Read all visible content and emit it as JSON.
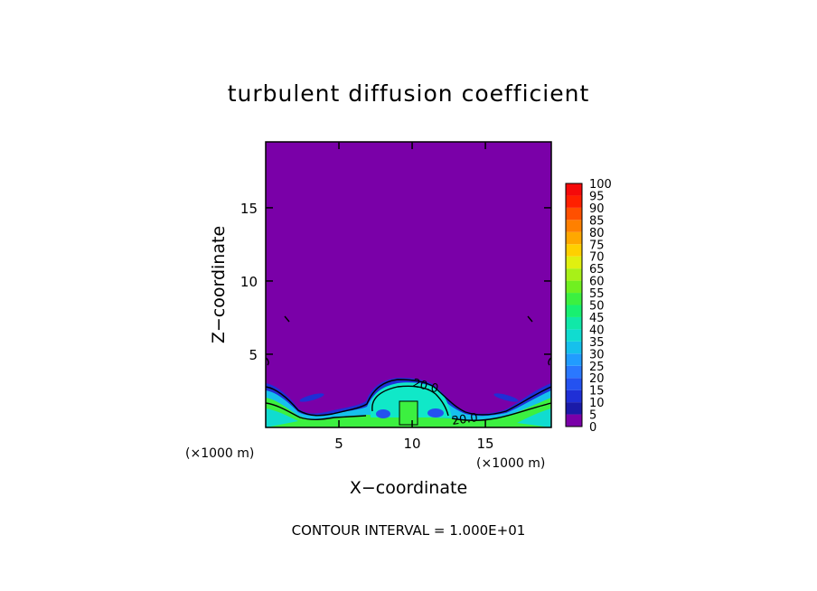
{
  "chart_data": {
    "type": "heatmap",
    "title": "turbulent diffusion coefficient",
    "xlabel": "X−coordinate",
    "ylabel": "Z−coordinate",
    "x_unit": "(×1000 m)",
    "y_unit": "(×1000 m)",
    "xlim": [
      0,
      19.5
    ],
    "ylim": [
      0,
      19.5
    ],
    "x_ticks": [
      5,
      10,
      15
    ],
    "y_ticks": [
      5,
      10,
      15
    ],
    "x_tick_labels": [
      "5",
      "10",
      "15"
    ],
    "y_tick_labels": [
      "5",
      "10",
      "15"
    ],
    "contour_interval_label": "CONTOUR INTERVAL = 1.000E+01",
    "contour_labels": [
      "20.0",
      "20.0"
    ],
    "colorbar": {
      "levels": [
        0,
        5,
        10,
        15,
        20,
        25,
        30,
        35,
        40,
        45,
        50,
        55,
        60,
        65,
        70,
        75,
        80,
        85,
        90,
        95,
        100
      ],
      "labels": [
        "0",
        "5",
        "10",
        "15",
        "20",
        "25",
        "30",
        "35",
        "40",
        "45",
        "50",
        "55",
        "60",
        "65",
        "70",
        "75",
        "80",
        "85",
        "90",
        "95",
        "100"
      ],
      "colors": [
        "#7a00a8",
        "#1a1aa8",
        "#1f2fd6",
        "#2452f0",
        "#2a78ff",
        "#219cff",
        "#16c0ec",
        "#10dcd0",
        "#10e8a8",
        "#18f070",
        "#3cf040",
        "#70f020",
        "#a8f018",
        "#e0f010",
        "#ffd000",
        "#ffa800",
        "#ff8000",
        "#ff5000",
        "#ff2000",
        "#f50a0a"
      ]
    },
    "background_value": 0,
    "grid": false
  }
}
